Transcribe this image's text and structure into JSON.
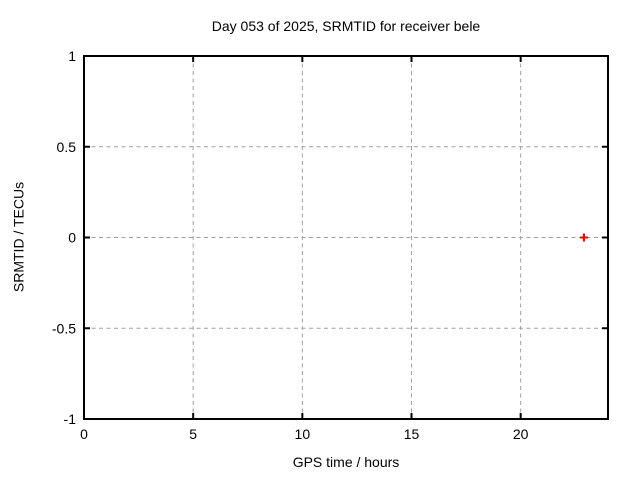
{
  "chart_data": {
    "type": "scatter",
    "title": "Day 053 of 2025, SRMTID for receiver bele",
    "xlabel": "GPS time / hours",
    "ylabel": "SRMTID / TECUs",
    "xlim": [
      0,
      24
    ],
    "ylim": [
      -1,
      1
    ],
    "grid": true,
    "grid_style": "dashed",
    "legend": "none",
    "xticks": [
      {
        "value": 0,
        "label": "0"
      },
      {
        "value": 5,
        "label": "5"
      },
      {
        "value": 10,
        "label": "10"
      },
      {
        "value": 15,
        "label": "15"
      },
      {
        "value": 20,
        "label": "20"
      }
    ],
    "yticks": [
      {
        "value": -1,
        "label": "-1"
      },
      {
        "value": -0.5,
        "label": "-0.5"
      },
      {
        "value": 0,
        "label": "0"
      },
      {
        "value": 0.5,
        "label": "0.5"
      },
      {
        "value": 1,
        "label": "1"
      }
    ],
    "series": [
      {
        "name": "SRMTID",
        "marker": "plus",
        "color": "#ff0000",
        "points": [
          {
            "x": 22.9,
            "y": 0.0
          }
        ]
      }
    ],
    "colors": {
      "background": "#ffffff",
      "border": "#000000",
      "grid": "#a0a0a0",
      "text": "#000000"
    }
  }
}
